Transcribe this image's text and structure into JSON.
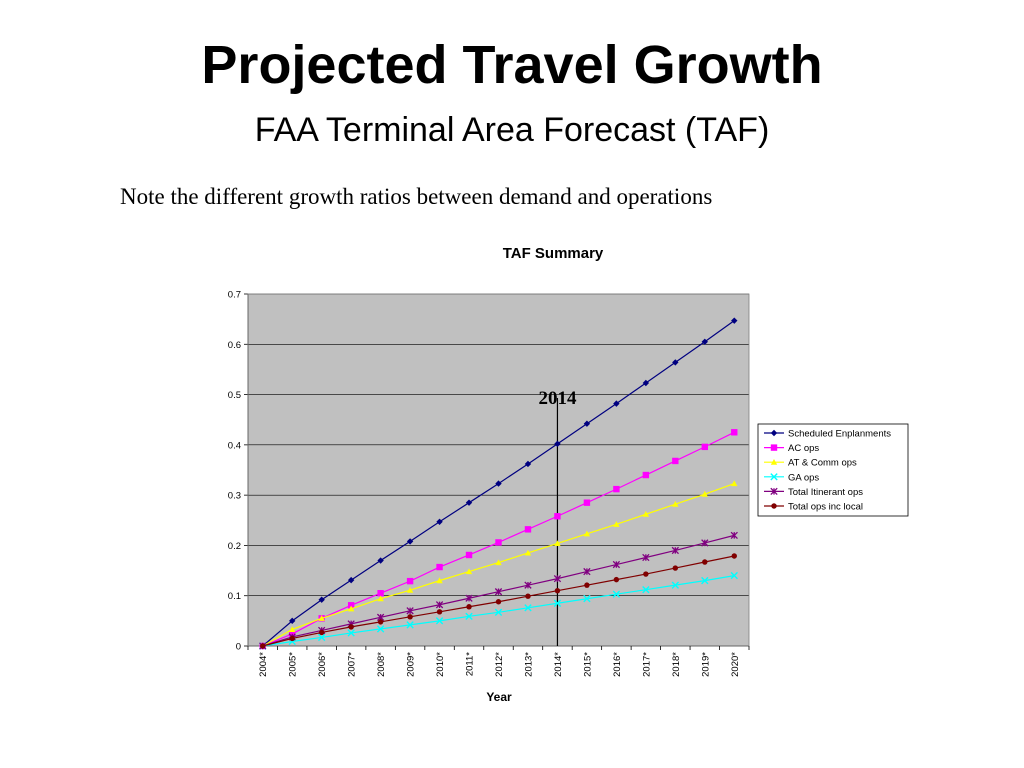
{
  "slide": {
    "title": "Projected Travel Growth",
    "subtitle": "FAA Terminal Area Forecast (TAF)",
    "note": "Note the different growth ratios between demand and operations"
  },
  "chart_data": {
    "type": "line",
    "title": "TAF Summary",
    "xlabel": "Year",
    "ylabel": "",
    "categories": [
      "2004*",
      "2005*",
      "2006*",
      "2007*",
      "2008*",
      "2009*",
      "2010*",
      "2011*",
      "2012*",
      "2013*",
      "2014*",
      "2015*",
      "2016*",
      "2017*",
      "2018*",
      "2019*",
      "2020*"
    ],
    "ylim": [
      0,
      0.7
    ],
    "yticks": [
      "0",
      "0.1",
      "0.2",
      "0.3",
      "0.4",
      "0.5",
      "0.6",
      "0.7"
    ],
    "grid": true,
    "legend_position": "right",
    "background": "#c0c0c0",
    "reference_line": {
      "category": "2014*",
      "label": "2014"
    },
    "series": [
      {
        "name": "Scheduled Enplanments",
        "color": "#000080",
        "marker": "diamond",
        "values": [
          0,
          0.05,
          0.092,
          0.131,
          0.17,
          0.208,
          0.247,
          0.285,
          0.323,
          0.362,
          0.402,
          0.442,
          0.482,
          0.523,
          0.564,
          0.605,
          0.647
        ]
      },
      {
        "name": "AC ops",
        "color": "#ff00ff",
        "marker": "square",
        "values": [
          0,
          0.024,
          0.055,
          0.081,
          0.105,
          0.129,
          0.157,
          0.181,
          0.206,
          0.232,
          0.258,
          0.285,
          0.312,
          0.34,
          0.368,
          0.396,
          0.425
        ]
      },
      {
        "name": "AT & Comm ops",
        "color": "#ffff00",
        "marker": "triangle",
        "values": [
          0,
          0.033,
          0.055,
          0.074,
          0.094,
          0.111,
          0.13,
          0.148,
          0.166,
          0.185,
          0.204,
          0.223,
          0.242,
          0.262,
          0.282,
          0.302,
          0.323
        ]
      },
      {
        "name": "GA ops",
        "color": "#00ffff",
        "marker": "x",
        "values": [
          0,
          0.009,
          0.017,
          0.026,
          0.034,
          0.042,
          0.05,
          0.059,
          0.067,
          0.076,
          0.085,
          0.094,
          0.103,
          0.112,
          0.121,
          0.13,
          0.14
        ]
      },
      {
        "name": "Total Itinerant ops",
        "color": "#800080",
        "marker": "star",
        "values": [
          0,
          0.018,
          0.031,
          0.044,
          0.057,
          0.07,
          0.082,
          0.095,
          0.108,
          0.121,
          0.134,
          0.148,
          0.162,
          0.176,
          0.19,
          0.205,
          0.22
        ]
      },
      {
        "name": "Total ops inc local",
        "color": "#800000",
        "marker": "circle",
        "values": [
          0,
          0.015,
          0.027,
          0.038,
          0.048,
          0.058,
          0.068,
          0.078,
          0.088,
          0.099,
          0.11,
          0.121,
          0.132,
          0.143,
          0.155,
          0.167,
          0.179
        ]
      }
    ]
  }
}
